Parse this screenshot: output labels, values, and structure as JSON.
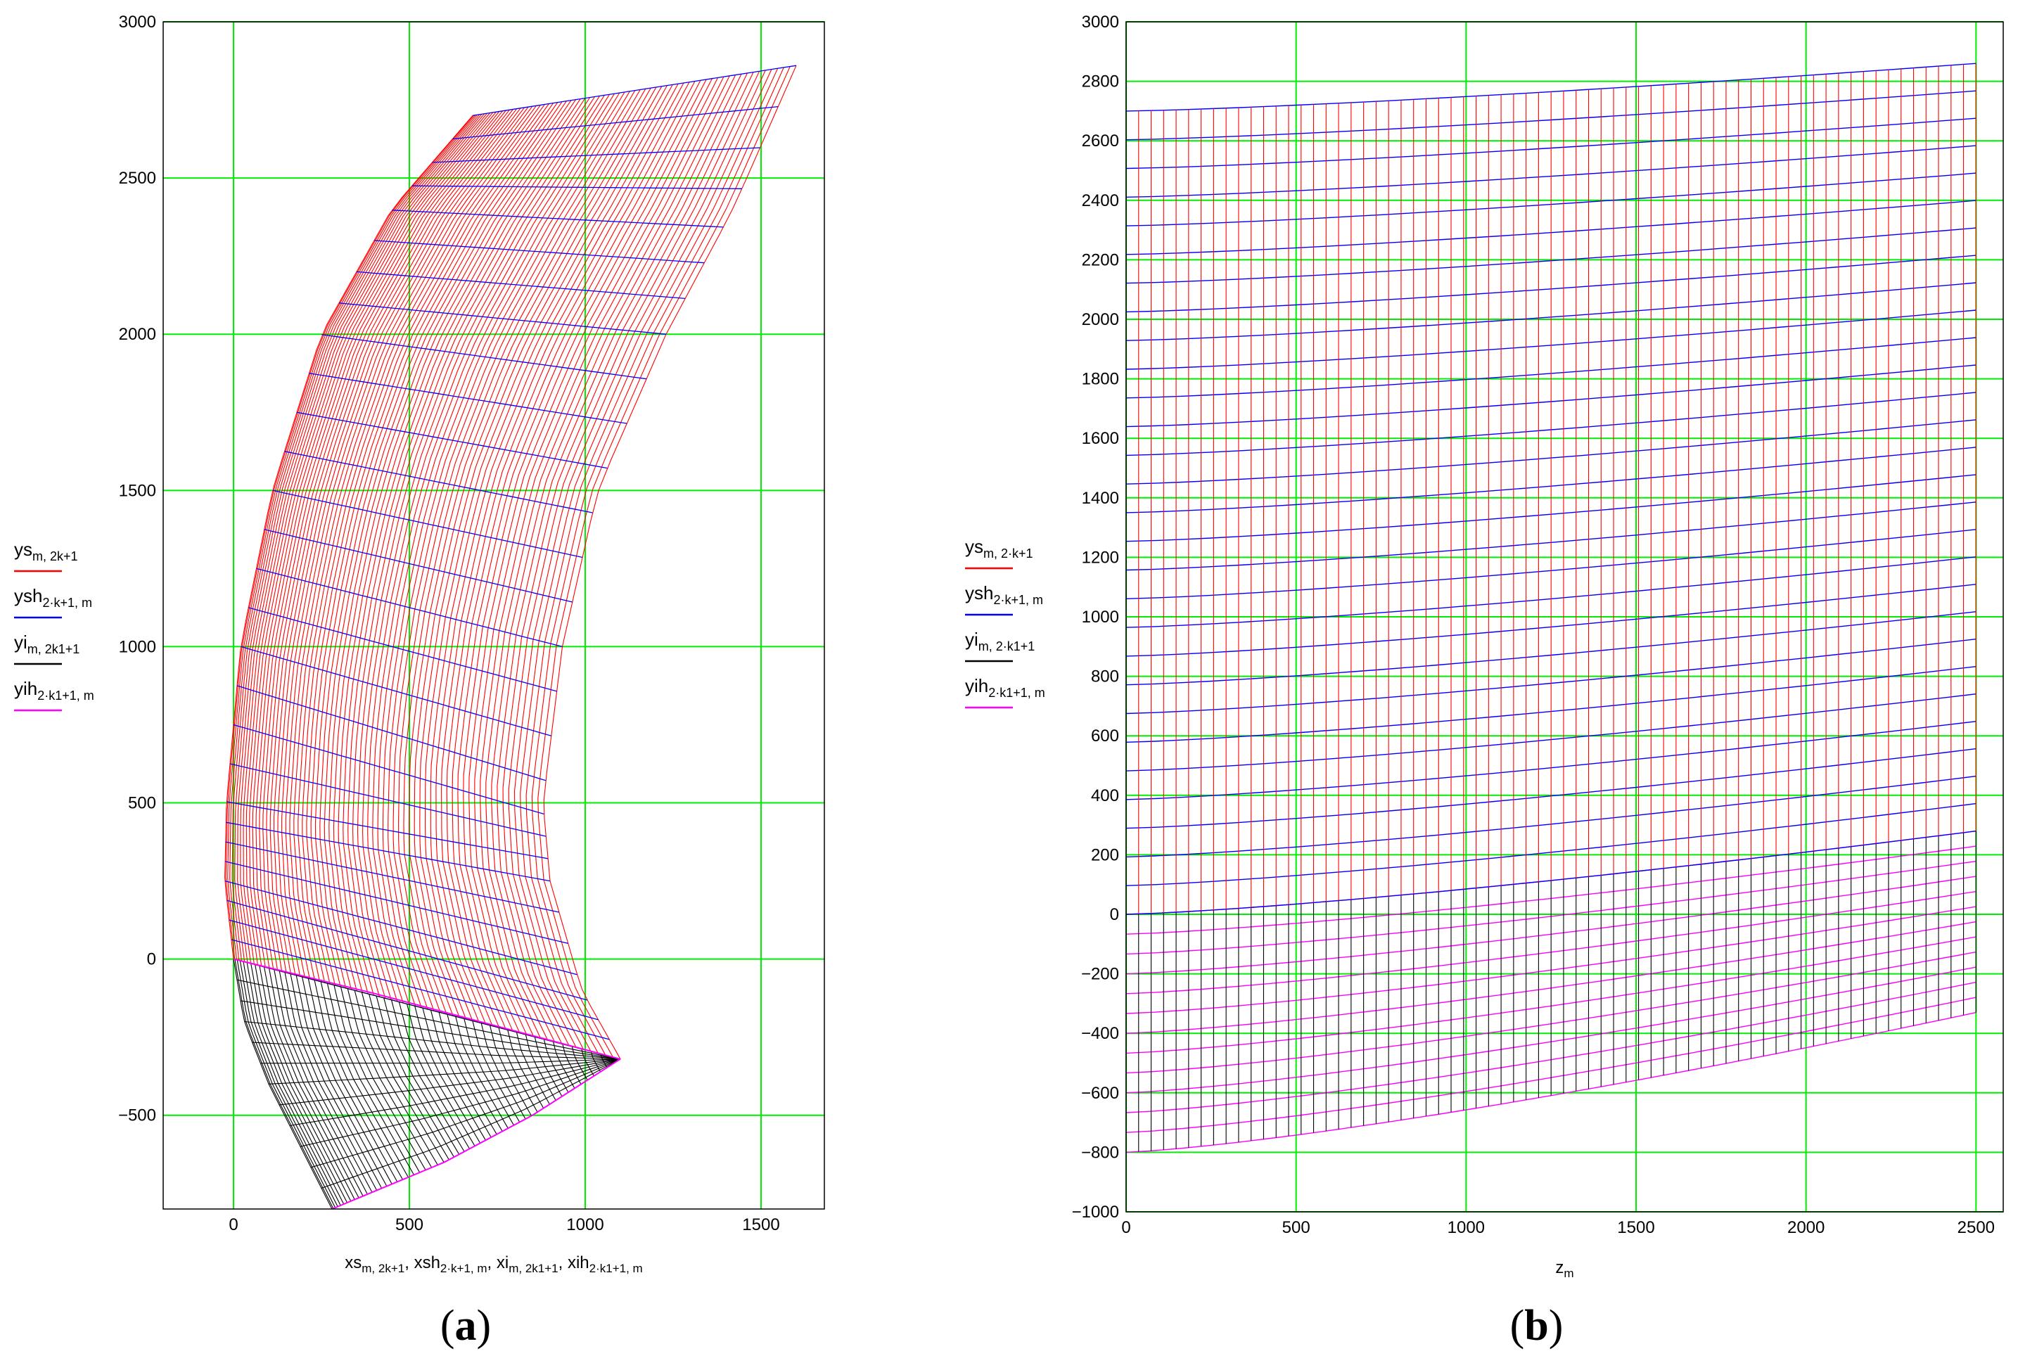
{
  "chart_data": [
    {
      "type": "line",
      "panel": "a",
      "caption": {
        "open": "(",
        "letter": "a",
        "close": ")"
      },
      "xlabel": [
        {
          "base": "xs",
          "sub": "m, 2k+1",
          "sep": ", "
        },
        {
          "base": "xsh",
          "sub": "2·k+1, m",
          "sep": ", "
        },
        {
          "base": "xi",
          "sub": "m, 2k1+1",
          "sep": ", "
        },
        {
          "base": "xih",
          "sub": "2·k1+1, m",
          "sep": ""
        }
      ],
      "xlim": [
        -200,
        1680
      ],
      "ylim": [
        -800,
        3000
      ],
      "xticks": [
        0,
        500,
        1000,
        1500
      ],
      "yticks": [
        -500,
        0,
        500,
        1000,
        1500,
        2000,
        2500,
        3000
      ],
      "x_tick_labels": [
        "0",
        "500",
        "1000",
        "1500"
      ],
      "y_tick_labels": [
        "−500",
        "0",
        "500",
        "1000",
        "1500",
        "2000",
        "2500",
        "3000"
      ],
      "grid": true,
      "grid_color": "#00ee00",
      "legend_position": "left-middle",
      "legend": [
        {
          "base": "ys",
          "sub": "m, 2k+1",
          "color": "#ff0000"
        },
        {
          "base": "ysh",
          "sub": "2·k+1, m",
          "color": "#0000ff"
        },
        {
          "base": "yi",
          "sub": "m, 2k1+1",
          "color": "#000000"
        },
        {
          "base": "yih",
          "sub": "2·k1+1, m",
          "color": "#ff00ff"
        }
      ],
      "mesh": {
        "description_free": true,
        "upper": {
          "inner_edge": [
            [
              0,
              0
            ],
            [
              -25,
              250
            ],
            [
              -20,
              500
            ],
            [
              20,
              1000
            ],
            [
              110,
              1500
            ],
            [
              250,
              2000
            ],
            [
              450,
              2400
            ],
            [
              680,
              2700
            ]
          ],
          "outer_edge": [
            [
              1100,
              -320
            ],
            [
              990,
              -100
            ],
            [
              900,
              250
            ],
            [
              880,
              500
            ],
            [
              935,
              1000
            ],
            [
              1035,
              1500
            ],
            [
              1230,
              2000
            ],
            [
              1420,
              2400
            ],
            [
              1600,
              2860
            ]
          ],
          "row_color": "#0000ff",
          "column_color": "#ff0000",
          "rows": 28,
          "columns": 70
        },
        "lower": {
          "inner_edge": [
            [
              280,
              -800
            ],
            [
              190,
              -600
            ],
            [
              100,
              -400
            ],
            [
              30,
              -200
            ],
            [
              0,
              0
            ]
          ],
          "outer_edge": [
            [
              280,
              -800
            ],
            [
              600,
              -650
            ],
            [
              850,
              -500
            ],
            [
              1100,
              -320
            ]
          ],
          "row_color": "#000000",
          "column_color": "#000000",
          "boundary_color": "#ff00ff"
        }
      }
    },
    {
      "type": "line",
      "panel": "b",
      "caption": {
        "open": "(",
        "letter": "b",
        "close": ")"
      },
      "xlabel": [
        {
          "base": "z",
          "sub": "m",
          "sep": ""
        }
      ],
      "xlim": [
        0,
        2580
      ],
      "ylim": [
        -1000,
        3000
      ],
      "xticks": [
        0,
        500,
        1000,
        1500,
        2000,
        2500
      ],
      "yticks": [
        -1000,
        -800,
        -600,
        -400,
        -200,
        0,
        200,
        400,
        600,
        800,
        1000,
        1200,
        1400,
        1600,
        1800,
        2000,
        2200,
        2400,
        2600,
        2800,
        3000
      ],
      "x_tick_labels": [
        "0",
        "500",
        "1000",
        "1500",
        "2000",
        "2500"
      ],
      "y_tick_labels": [
        "−1000",
        "−800",
        "−600",
        "−400",
        "−200",
        "0",
        "200",
        "400",
        "600",
        "800",
        "1000",
        "1200",
        "1400",
        "1600",
        "1800",
        "2000",
        "2200",
        "2400",
        "2600",
        "2800",
        "3000"
      ],
      "grid": true,
      "grid_color": "#00ee00",
      "legend_position": "left-middle",
      "legend": [
        {
          "base": "ys",
          "sub": "m, 2·k+1",
          "color": "#ff0000"
        },
        {
          "base": "ysh",
          "sub": "2·k+1, m",
          "color": "#0000ff"
        },
        {
          "base": "yi",
          "sub": "m, 2·k1+1",
          "color": "#000000"
        },
        {
          "base": "yih",
          "sub": "2·k1+1, m",
          "color": "#ff00ff"
        }
      ],
      "mesh": {
        "x_start": 0,
        "x_end": 2500,
        "columns": 68,
        "upper": {
          "top_left": 2700,
          "top_right": 2860,
          "bottom_left": 0,
          "bottom_right": 280,
          "rows": 28,
          "row_color": "#0000ff",
          "column_color": "#ff0000"
        },
        "lower": {
          "top_left": 0,
          "top_right": 280,
          "bottom_left": -800,
          "bottom_right": -330,
          "rows": 12,
          "row_color": "#ff00ff",
          "column_color": "#000000"
        }
      }
    }
  ]
}
